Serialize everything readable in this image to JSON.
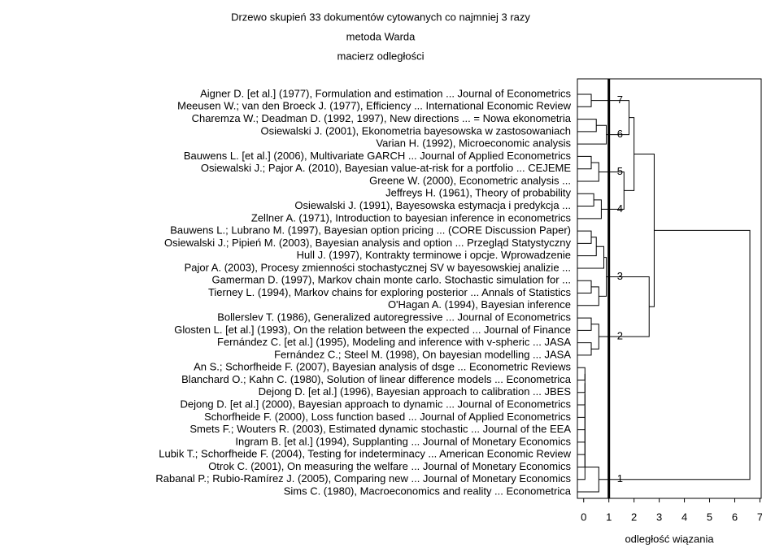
{
  "chart_data": {
    "type": "dendrogram",
    "title": "Drzewo skupień 33 dokumentów cytowanych co najmniej 3 razy",
    "subtitle": "metoda Warda",
    "subtitle2": "macierz odległości",
    "xlabel": "odległość wiązania",
    "xlim": [
      -0.25,
      7.05
    ],
    "xticks": [
      0,
      1,
      2,
      3,
      4,
      5,
      6,
      7
    ],
    "cut": 1,
    "color": "#000000",
    "leaves": [
      "Aigner D. [et al.] (1977), Formulation and estimation ... Journal of Econometrics",
      "Meeusen W.; van den Broeck J. (1977), Efficiency ... International Economic Review",
      "Charemza W.; Deadman D. (1992, 1997), New directions ... = Nowa ekonometria",
      "Osiewalski J. (2001), Ekonometria bayesowska w zastosowaniach",
      "Varian H. (1992), Microeconomic analysis",
      "Bauwens L. [et al.] (2006), Multivariate GARCH ... Journal of Applied Econometrics",
      "Osiewalski J.; Pajor A. (2010), Bayesian value-at-risk for a portfolio ... CEJEME",
      "Greene W.   (2000), Econometric analysis ...",
      "Jeffreys H. (1961), Theory of probability",
      "Osiewalski J. (1991), Bayesowska estymacja i predykcja ...",
      "Zellner A. (1971), Introduction to bayesian inference in econometrics",
      "Bauwens L.; Lubrano M. (1997), Bayesian option pricing ... (CORE Discussion Paper)",
      "Osiewalski J.; Pipień M. (2003), Bayesian analysis and option ... Przegląd Statystyczny",
      "Hull J. (1997), Kontrakty terminowe i opcje. Wprowadzenie",
      "Pajor A. (2003), Procesy zmienności stochastycznej SV w bayesowskiej analizie ...",
      "Gamerman D. (1997), Markov chain monte carlo. Stochastic simulation for ...",
      "Tierney L. (1994), Markov chains for exploring posterior ... Annals of Statistics",
      "O'Hagan A. (1994), Bayesian inference",
      "Bollerslev T. (1986), Generalized autoregressive ... Journal of Econometrics",
      "Glosten L. [et al.] (1993), On the relation between the expected ... Journal of Finance",
      "Fernández C. [et al.] (1995), Modeling and inference with v-spheric ... JASA",
      "Fernández C.; Steel M. (1998), On bayesian modelling ... JASA",
      "An S.; Schorfheide F. (2007), Bayesian analysis of dsge ... Econometric Reviews",
      "Blanchard O.; Kahn C. (1980), Solution of linear difference models ... Econometrica",
      "Dejong D. [et al.] (1996), Bayesian approach to calibration ... JBES",
      "Dejong D. [et al.] (2000), Bayesian approach to dynamic ... Journal of Econometrics",
      "Schorfheide F. (2000), Loss function based ... Journal of Applied Econometrics",
      "Smets F.; Wouters R. (2003), Estimated dynamic stochastic ... Journal of the EEA",
      "Ingram B. [et al.] (1994), Supplanting ... Journal of Monetary Economics",
      "Lubik T.; Schorfheide F. (2004), Testing for indeterminacy ... American Economic Review",
      "Otrok C. (2001), On measuring the welfare ... Journal of Monetary Economics",
      "Rabanal P.; Rubio-Ramírez J. (2005), Comparing new ... Journal of Monetary Economics",
      "Sims C. (1980), Macroeconomics and reality ... Econometrica"
    ],
    "merges": [
      {
        "join": [
          0,
          1
        ],
        "height": 0.3
      },
      {
        "join": [
          2,
          3
        ],
        "height": 0.5
      },
      {
        "join": [
          34,
          4
        ],
        "height": 0.9
      },
      {
        "join": [
          33,
          35
        ],
        "height": 1.8
      },
      {
        "join": [
          5,
          6
        ],
        "height": 0.3
      },
      {
        "join": [
          37,
          7
        ],
        "height": 0.6
      },
      {
        "join": [
          8,
          9
        ],
        "height": 0.4
      },
      {
        "join": [
          39,
          10
        ],
        "height": 0.7
      },
      {
        "join": [
          38,
          40
        ],
        "height": 1.6
      },
      {
        "join": [
          36,
          41
        ],
        "height": 2.0
      },
      {
        "join": [
          11,
          12
        ],
        "height": 0.3
      },
      {
        "join": [
          43,
          13
        ],
        "height": 0.5
      },
      {
        "join": [
          44,
          14
        ],
        "height": 0.8
      },
      {
        "join": [
          15,
          16
        ],
        "height": 0.3
      },
      {
        "join": [
          46,
          17
        ],
        "height": 0.6
      },
      {
        "join": [
          45,
          47
        ],
        "height": 0.9
      },
      {
        "join": [
          18,
          19
        ],
        "height": 0.3
      },
      {
        "join": [
          20,
          21
        ],
        "height": 0.3
      },
      {
        "join": [
          49,
          50
        ],
        "height": 0.6
      },
      {
        "join": [
          48,
          51
        ],
        "height": 2.6
      },
      {
        "join": [
          42,
          52
        ],
        "height": 2.8
      },
      {
        "join": [
          22,
          23
        ],
        "height": 0.05
      },
      {
        "join": [
          54,
          24
        ],
        "height": 0.05
      },
      {
        "join": [
          55,
          25
        ],
        "height": 0.05
      },
      {
        "join": [
          56,
          26
        ],
        "height": 0.05
      },
      {
        "join": [
          57,
          27
        ],
        "height": 0.05
      },
      {
        "join": [
          58,
          28
        ],
        "height": 0.05
      },
      {
        "join": [
          59,
          29
        ],
        "height": 0.05
      },
      {
        "join": [
          60,
          30
        ],
        "height": 0.05
      },
      {
        "join": [
          61,
          31
        ],
        "height": 0.05
      },
      {
        "join": [
          62,
          32
        ],
        "height": 0.6
      },
      {
        "join": [
          53,
          63
        ],
        "height": 6.6
      }
    ],
    "cluster_labels": [
      {
        "label": "7",
        "node": 33
      },
      {
        "label": "6",
        "node": 35
      },
      {
        "label": "5",
        "node": 38
      },
      {
        "label": "4",
        "node": 40
      },
      {
        "label": "3",
        "node": 48
      },
      {
        "label": "2",
        "node": 51
      },
      {
        "label": "1",
        "node": 63
      }
    ]
  }
}
